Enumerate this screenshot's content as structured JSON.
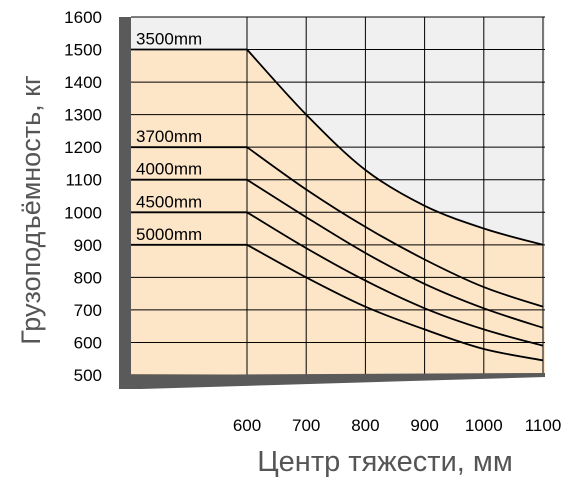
{
  "chart_data": {
    "type": "line",
    "title": "",
    "xlabel": "Центр тяжести, мм",
    "ylabel": "Грузоподъёмность, кг",
    "x_ticks": [
      "600",
      "700",
      "800",
      "900",
      "1000",
      "1100"
    ],
    "y_ticks": [
      "500",
      "600",
      "700",
      "800",
      "900",
      "1000",
      "1100",
      "1200",
      "1300",
      "1400",
      "1500",
      "1600"
    ],
    "xlim": [
      400,
      1100
    ],
    "ylim": [
      500,
      1600
    ],
    "grid": true,
    "colors": {
      "area_fill": "#fde6c8",
      "upper_fill": "#f0f0f0",
      "frame": "#5a5a5a",
      "lines": "#000000"
    },
    "series": [
      {
        "name": "3500mm",
        "x": [
          400,
          600,
          700,
          800,
          900,
          1000,
          1100
        ],
        "values": [
          1500,
          1500,
          1300,
          1130,
          1020,
          950,
          900
        ]
      },
      {
        "name": "3700mm",
        "x": [
          400,
          600,
          700,
          800,
          900,
          1000,
          1100
        ],
        "values": [
          1200,
          1200,
          1070,
          955,
          855,
          770,
          710
        ]
      },
      {
        "name": "4000mm",
        "x": [
          400,
          600,
          700,
          800,
          900,
          1000,
          1100
        ],
        "values": [
          1100,
          1100,
          985,
          875,
          780,
          705,
          645
        ]
      },
      {
        "name": "4500mm",
        "x": [
          400,
          600,
          700,
          800,
          900,
          1000,
          1100
        ],
        "values": [
          1000,
          1000,
          890,
          790,
          705,
          640,
          590
        ]
      },
      {
        "name": "5000mm",
        "x": [
          400,
          600,
          700,
          800,
          900,
          1000,
          1100
        ],
        "values": [
          900,
          900,
          800,
          710,
          640,
          580,
          545
        ]
      }
    ]
  }
}
